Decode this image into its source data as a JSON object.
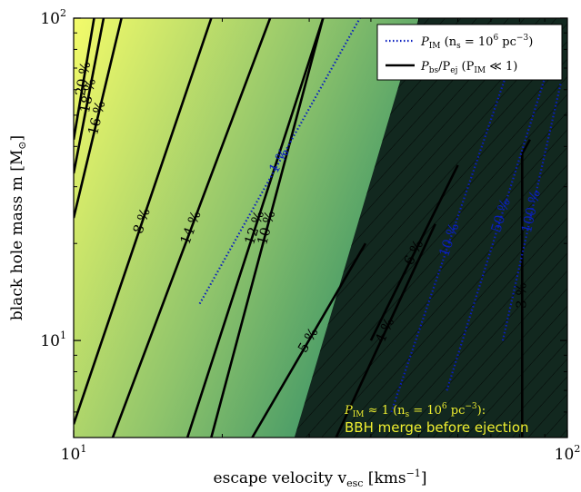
{
  "chart_data": {
    "type": "contour",
    "xlabel": "escape velocity v",
    "xlabel_sub": "esc",
    "xlabel_unit": " [kms",
    "xlabel_unit_sup": "−1",
    "xlabel_unit_end": "]",
    "ylabel": "black hole mass m [M",
    "ylabel_sub": "⊙",
    "ylabel_end": "]",
    "x_scale": "log",
    "y_scale": "log",
    "xlim": [
      10,
      100
    ],
    "ylim": [
      5,
      100
    ],
    "x_ticks": [
      {
        "value": 10,
        "base": "10",
        "exp": "1"
      },
      {
        "value": 100,
        "base": "10",
        "exp": "2"
      }
    ],
    "y_ticks": [
      {
        "value": 10,
        "base": "10",
        "exp": "1"
      },
      {
        "value": 100,
        "base": "10",
        "exp": "2"
      }
    ],
    "colors": {
      "gradient_light": "#f3fb6a",
      "gradient_mid": "#8fc46b",
      "gradient_dark": "#2b8a66",
      "merge_region": "#12281f",
      "contour": "#000000",
      "pim_contour": "#0a1fbf",
      "annotation": "#f0f030"
    },
    "black_contours": [
      {
        "label": "8 %",
        "points": [
          [
            10,
            5.5
          ],
          [
            19,
            100
          ]
        ]
      },
      {
        "label": "16 %",
        "points": [
          [
            10,
            24
          ],
          [
            12.5,
            100
          ]
        ]
      },
      {
        "label": "18 %",
        "points": [
          [
            10,
            33
          ],
          [
            11.5,
            100
          ]
        ]
      },
      {
        "label": "20 %",
        "points": [
          [
            10,
            42
          ],
          [
            11.0,
            100
          ]
        ]
      },
      {
        "label": "14 %",
        "points": [
          [
            12,
            5
          ],
          [
            25,
            100
          ]
        ]
      },
      {
        "label": "12 %",
        "points": [
          [
            17,
            5
          ],
          [
            32,
            100
          ]
        ]
      },
      {
        "label": "10 %",
        "points": [
          [
            19,
            5
          ],
          [
            32,
            100
          ]
        ]
      },
      {
        "label": "6 %",
        "points": [
          [
            40,
            10
          ],
          [
            60,
            35
          ]
        ]
      },
      {
        "label": "5 %",
        "points": [
          [
            23,
            5
          ],
          [
            39,
            20
          ]
        ]
      },
      {
        "label": "4 %",
        "points": [
          [
            34,
            5
          ],
          [
            54,
            23
          ]
        ]
      },
      {
        "label": "3 %",
        "points": [
          [
            81,
            5
          ],
          [
            81,
            38
          ],
          [
            84,
            42
          ]
        ]
      }
    ],
    "pim_contours": [
      {
        "label": "1 %",
        "points": [
          [
            18,
            13
          ],
          [
            38,
            100
          ]
        ]
      },
      {
        "label": "10 %",
        "points": [
          [
            44,
            6
          ],
          [
            76,
            70
          ]
        ]
      },
      {
        "label": "50 %",
        "points": [
          [
            57,
            7
          ],
          [
            95,
            85
          ]
        ]
      },
      {
        "label": "100 %",
        "points": [
          [
            74,
            10
          ],
          [
            97,
            63
          ]
        ]
      }
    ],
    "merge_boundary": [
      [
        28,
        5
      ],
      [
        50,
        100
      ]
    ],
    "legend": {
      "placement": "top-right",
      "entries": [
        {
          "style": "dotted",
          "name": "P",
          "name_sub": "IM",
          "name_tail": " (n",
          "tail_sub": "s",
          "tail_mid": " = 10",
          "tail_sup": "6",
          "tail_end": " pc",
          "end_sup": "−3",
          "close": ")"
        },
        {
          "style": "solid",
          "name": "P",
          "name_sub": "bs",
          "name_tail": "/P",
          "tail_sub": "ej",
          "tail_mid": " (P",
          "tail_sup": "",
          "tail_end": "",
          "end_sub": "IM",
          "close": " ≪ 1)"
        }
      ]
    },
    "annotation": {
      "line1_a": "P",
      "line1_sub": "IM",
      "line1_b": " ≈ 1 (n",
      "line1_sub2": "s",
      "line1_c": " = 10",
      "line1_sup": "6",
      "line1_d": " pc",
      "line1_sup2": "−3",
      "line1_e": "):",
      "line2": "BBH merge before ejection"
    }
  }
}
